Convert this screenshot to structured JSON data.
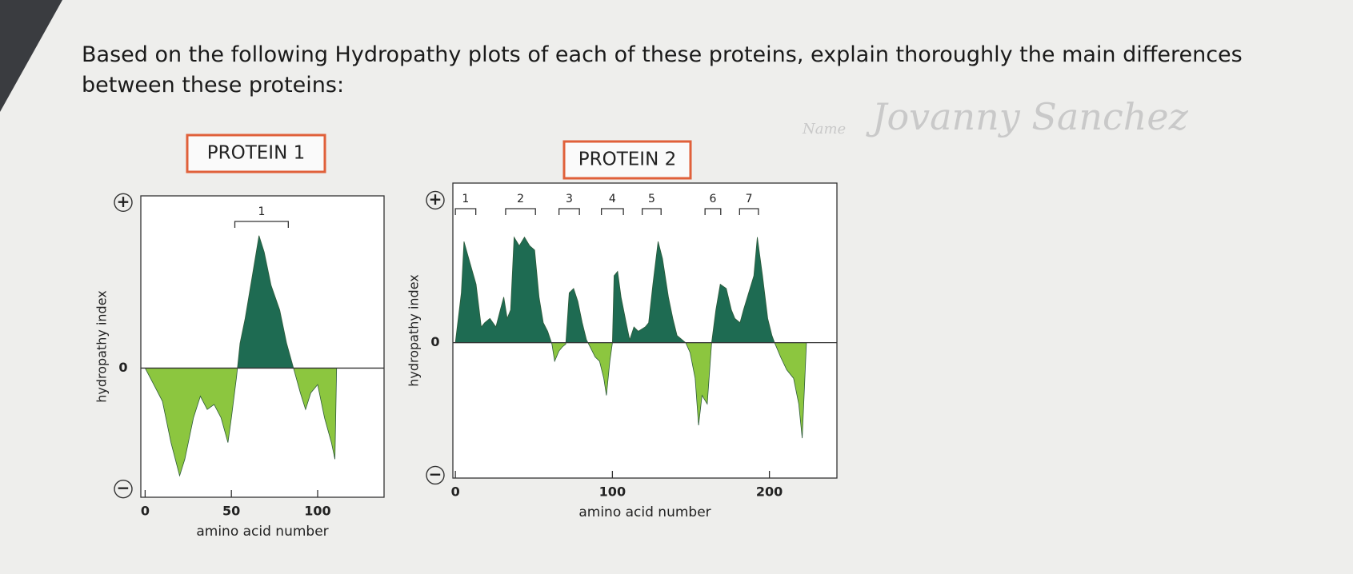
{
  "question": "Based on the following Hydropathy plots of each of these proteins, explain thoroughly the main differences between these proteins:",
  "name_label": "Name",
  "name": "Jovanny Sanchez",
  "chart_data": [
    {
      "type": "area",
      "title": "PROTEIN 1",
      "xlabel": "amino acid number",
      "ylabel": "hydropathy index",
      "x": [
        0,
        5,
        10,
        15,
        20,
        23,
        28,
        32,
        36,
        40,
        44,
        48,
        50,
        53,
        55,
        58,
        62,
        66,
        69,
        73,
        78,
        82,
        86,
        90,
        93,
        96,
        100,
        104,
        108,
        110,
        111
      ],
      "values": [
        0,
        -0.1,
        -0.2,
        -0.45,
        -0.65,
        -0.55,
        -0.3,
        -0.17,
        -0.25,
        -0.22,
        -0.3,
        -0.45,
        -0.3,
        -0.05,
        0.15,
        0.3,
        0.55,
        0.8,
        0.7,
        0.5,
        0.35,
        0.15,
        0,
        -0.15,
        -0.25,
        -0.15,
        -0.1,
        -0.3,
        -0.45,
        -0.55,
        0
      ],
      "positive_color": "#1e6b52",
      "negative_color": "#8cc63f",
      "xlim": [
        -2.5,
        138.5
      ],
      "xticks": [
        0,
        50,
        100
      ],
      "ylim": [
        -0.78,
        1.04
      ],
      "yticks": [
        {
          "value": 1,
          "label": "+"
        },
        0,
        {
          "value": -0.73,
          "label": "−"
        }
      ],
      "segments": [
        {
          "label": "1",
          "start": 52,
          "end": 83
        }
      ]
    },
    {
      "type": "area",
      "title": "PROTEIN 2",
      "xlabel": "amino acid number",
      "ylabel": "hydropathy index",
      "x": [
        0,
        3.8,
        5.5,
        9.3,
        13.2,
        16.5,
        18.7,
        22,
        25.8,
        28.6,
        30.8,
        33,
        35.2,
        37.4,
        40.7,
        44,
        47.3,
        50.5,
        53.3,
        56,
        58.8,
        61.5,
        63.2,
        65.9,
        68.1,
        70.3,
        72.5,
        75.3,
        78,
        80.8,
        83.5,
        86.3,
        89,
        91.8,
        94.5,
        96.2,
        98.4,
        100,
        101.1,
        103.3,
        105.5,
        108.8,
        111,
        113.7,
        116.5,
        120.9,
        123.1,
        125.8,
        129.1,
        131.9,
        135.7,
        138.5,
        141.2,
        146.7,
        149.5,
        152.7,
        154.9,
        157.1,
        160.4,
        163.2,
        165.9,
        168.7,
        172.5,
        175.8,
        178,
        181.3,
        183.5,
        186.8,
        190.1,
        192.3,
        195.6,
        198.9,
        201.6,
        203.3,
        207.1,
        211,
        215.4,
        218.7,
        220.9,
        223.6
      ],
      "values": [
        0,
        0.35,
        0.71,
        0.56,
        0.41,
        0.11,
        0.14,
        0.17,
        0.11,
        0.23,
        0.32,
        0.17,
        0.23,
        0.74,
        0.68,
        0.74,
        0.68,
        0.65,
        0.32,
        0.14,
        0.08,
        -0.01,
        -0.13,
        -0.06,
        -0.03,
        -0.01,
        0.35,
        0.38,
        0.29,
        0.14,
        0.02,
        -0.04,
        -0.1,
        -0.13,
        -0.25,
        -0.37,
        -0.13,
        0,
        0.47,
        0.5,
        0.32,
        0.14,
        0.02,
        0.11,
        0.08,
        0.11,
        0.14,
        0.41,
        0.71,
        0.59,
        0.32,
        0.17,
        0.05,
        0,
        -0.07,
        -0.25,
        -0.58,
        -0.37,
        -0.43,
        0,
        0.23,
        0.41,
        0.38,
        0.23,
        0.17,
        0.14,
        0.23,
        0.35,
        0.47,
        0.74,
        0.47,
        0.17,
        0.05,
        0,
        -0.1,
        -0.19,
        -0.25,
        -0.43,
        -0.67,
        0
      ],
      "positive_color": "#1e6b52",
      "negative_color": "#8cc63f",
      "xlim": [
        -1.6,
        243
      ],
      "xticks": [
        0,
        100,
        200
      ],
      "ylim": [
        -0.95,
        1.12
      ],
      "yticks": [
        {
          "value": 1,
          "label": "+"
        },
        0,
        {
          "value": -0.93,
          "label": "−"
        }
      ],
      "segments": [
        {
          "label": "1",
          "start": 0,
          "end": 13
        },
        {
          "label": "2",
          "start": 32,
          "end": 51
        },
        {
          "label": "3",
          "start": 66,
          "end": 79
        },
        {
          "label": "4",
          "start": 93,
          "end": 107
        },
        {
          "label": "5",
          "start": 119,
          "end": 131
        },
        {
          "label": "6",
          "start": 159,
          "end": 169
        },
        {
          "label": "7",
          "start": 181,
          "end": 193
        }
      ]
    }
  ]
}
